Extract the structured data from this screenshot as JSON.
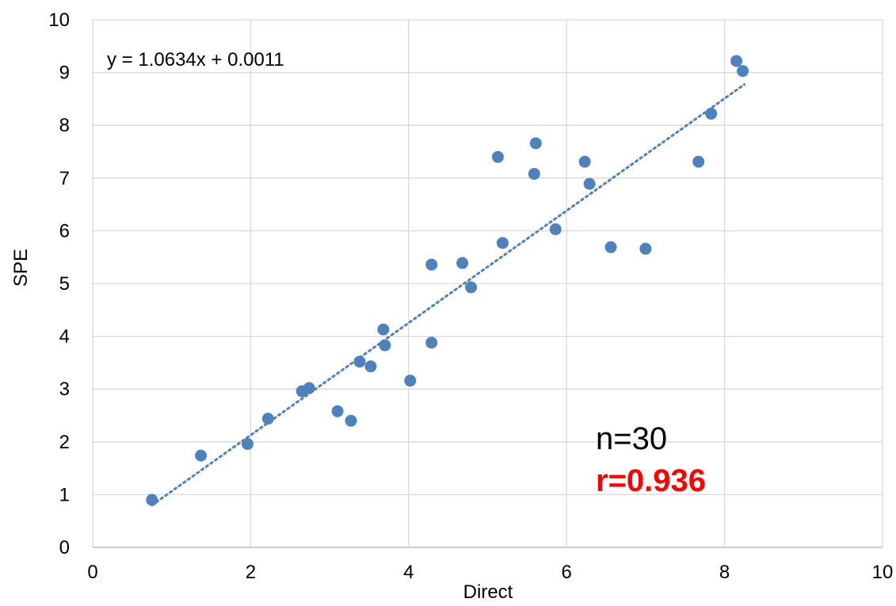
{
  "chart_data": {
    "type": "scatter",
    "xlabel": "Direct",
    "ylabel": "SPE",
    "xlim": [
      0,
      10
    ],
    "ylim": [
      0,
      10
    ],
    "x_ticks": [
      "0",
      "2",
      "4",
      "6",
      "8",
      "10"
    ],
    "y_ticks": [
      "0",
      "1",
      "2",
      "3",
      "4",
      "5",
      "6",
      "7",
      "8",
      "9",
      "10"
    ],
    "grid": true,
    "legend": "none",
    "trendline": {
      "label": "y = 1.0634x + 0.0011",
      "slope": 1.0634,
      "intercept": 0.0011,
      "x_range": [
        0.75,
        8.25
      ],
      "style": "dotted"
    },
    "annotations": {
      "n_label": "n=30",
      "r_label": "r=0.936"
    },
    "points": [
      {
        "x": 0.75,
        "y": 0.9
      },
      {
        "x": 1.37,
        "y": 1.74
      },
      {
        "x": 1.96,
        "y": 1.96
      },
      {
        "x": 2.22,
        "y": 2.44
      },
      {
        "x": 2.65,
        "y": 2.96
      },
      {
        "x": 2.74,
        "y": 3.02
      },
      {
        "x": 3.1,
        "y": 2.58
      },
      {
        "x": 3.27,
        "y": 2.4
      },
      {
        "x": 3.38,
        "y": 3.52
      },
      {
        "x": 3.52,
        "y": 3.43
      },
      {
        "x": 3.68,
        "y": 4.13
      },
      {
        "x": 3.7,
        "y": 3.83
      },
      {
        "x": 4.02,
        "y": 3.16
      },
      {
        "x": 4.29,
        "y": 3.88
      },
      {
        "x": 4.29,
        "y": 5.36
      },
      {
        "x": 4.68,
        "y": 5.39
      },
      {
        "x": 4.79,
        "y": 4.93
      },
      {
        "x": 5.13,
        "y": 7.4
      },
      {
        "x": 5.19,
        "y": 5.77
      },
      {
        "x": 5.59,
        "y": 7.08
      },
      {
        "x": 5.61,
        "y": 7.66
      },
      {
        "x": 5.86,
        "y": 6.03
      },
      {
        "x": 6.23,
        "y": 7.31
      },
      {
        "x": 6.29,
        "y": 6.89
      },
      {
        "x": 6.56,
        "y": 5.69
      },
      {
        "x": 7.0,
        "y": 5.66
      },
      {
        "x": 7.67,
        "y": 7.31
      },
      {
        "x": 7.83,
        "y": 8.22
      },
      {
        "x": 8.15,
        "y": 9.22
      },
      {
        "x": 8.23,
        "y": 9.03
      }
    ],
    "colors": {
      "point": "#4f81bd",
      "trendline": "#4f81bd",
      "grid": "#d9d9d9",
      "axis": "#bfbfbf",
      "text": "#000000",
      "r_label": "#ff0000"
    }
  }
}
